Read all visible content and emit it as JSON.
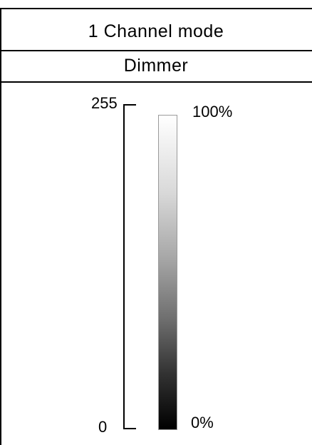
{
  "header": {
    "mode_title": "1 Channel mode",
    "function_name": "Dimmer"
  },
  "scale": {
    "dmx_max": "255",
    "dmx_min": "0",
    "percent_max": "100%",
    "percent_min": "0%"
  },
  "gradient": {
    "start_color": "#ffffff",
    "end_color": "#000000"
  }
}
